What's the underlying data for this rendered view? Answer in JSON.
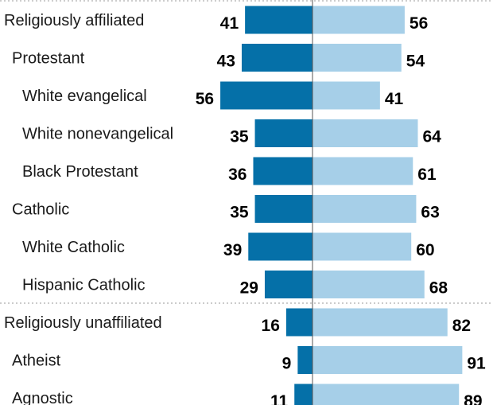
{
  "chart_data": {
    "type": "bar",
    "orientation": "horizontal-diverging",
    "title": "",
    "xlabel": "",
    "ylabel": "",
    "xlim": [
      0,
      100
    ],
    "grid": false,
    "legend": "none",
    "categories": [
      {
        "label": "Religiously affiliated",
        "level": 0,
        "group": "affiliated"
      },
      {
        "label": "Protestant",
        "level": 1,
        "group": "affiliated"
      },
      {
        "label": "White evangelical",
        "level": 2,
        "group": "affiliated"
      },
      {
        "label": "White nonevangelical",
        "level": 2,
        "group": "affiliated"
      },
      {
        "label": "Black Protestant",
        "level": 2,
        "group": "affiliated"
      },
      {
        "label": "Catholic",
        "level": 1,
        "group": "affiliated"
      },
      {
        "label": "White Catholic",
        "level": 2,
        "group": "affiliated"
      },
      {
        "label": "Hispanic Catholic",
        "level": 2,
        "group": "affiliated"
      },
      {
        "label": "Religiously unaffiliated",
        "level": 0,
        "group": "unaffiliated"
      },
      {
        "label": "Atheist",
        "level": 1,
        "group": "unaffiliated"
      },
      {
        "label": "Agnostic",
        "level": 1,
        "group": "unaffiliated"
      }
    ],
    "series": [
      {
        "color": "#0570a8",
        "side": "left",
        "values": [
          41,
          43,
          56,
          35,
          36,
          35,
          39,
          29,
          16,
          9,
          11
        ]
      },
      {
        "color": "#a6cfe8",
        "side": "right",
        "values": [
          56,
          54,
          41,
          64,
          61,
          63,
          60,
          68,
          82,
          91,
          89
        ]
      }
    ]
  }
}
